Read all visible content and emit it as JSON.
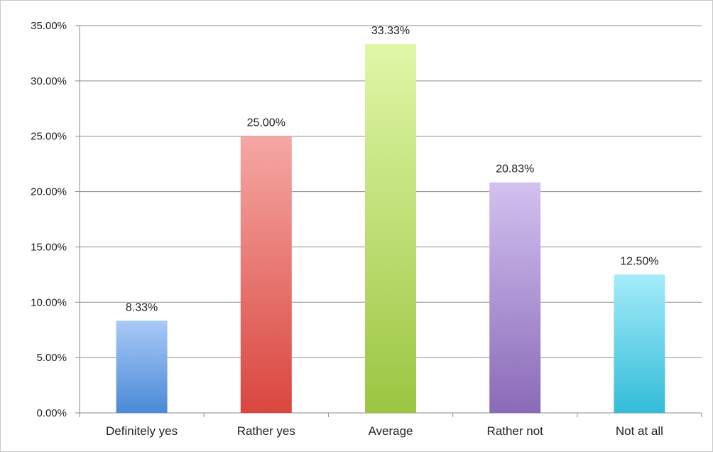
{
  "chart_data": {
    "type": "bar",
    "title": "",
    "xlabel": "",
    "ylabel": "",
    "categories": [
      "Definitely yes",
      "Rather yes",
      "Average",
      "Rather not",
      "Not at all"
    ],
    "values": [
      8.33,
      25.0,
      33.33,
      20.83,
      12.5
    ],
    "value_labels": [
      "8.33%",
      "25.00%",
      "33.33%",
      "20.83%",
      "12.50%"
    ],
    "ylim": [
      0,
      35
    ],
    "yticks": [
      0,
      5,
      10,
      15,
      20,
      25,
      30,
      35
    ],
    "ytick_labels": [
      "0.00%",
      "5.00%",
      "10.00%",
      "15.00%",
      "20.00%",
      "25.00%",
      "30.00%",
      "35.00%"
    ],
    "grid": true,
    "legend": "none",
    "colors": [
      {
        "top": "#a9c9f7",
        "bottom": "#4a8ad6"
      },
      {
        "top": "#f6a7a4",
        "bottom": "#d9463e"
      },
      {
        "top": "#e0f7a8",
        "bottom": "#9cc542"
      },
      {
        "top": "#d2c1f0",
        "bottom": "#8a6ab8"
      },
      {
        "top": "#a4ecfa",
        "bottom": "#34bcd9"
      }
    ]
  }
}
